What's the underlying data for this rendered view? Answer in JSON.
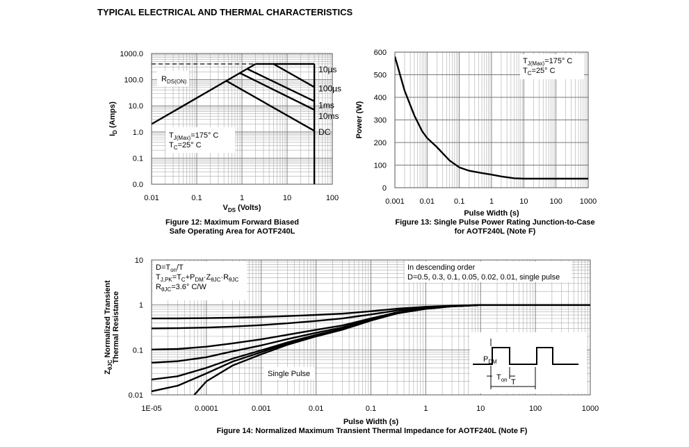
{
  "page_title": "TYPICAL ELECTRICAL AND THERMAL CHARACTERISTICS",
  "chart_data": [
    {
      "type": "line",
      "xlog": true,
      "ylog": true,
      "grid": true,
      "xlabel": [
        {
          "text": "V"
        },
        {
          "sub": "DS"
        },
        {
          "text": " (Volts)"
        }
      ],
      "ylabel": [
        {
          "text": "I"
        },
        {
          "sub": "D"
        },
        {
          "text": " (Amps)"
        }
      ],
      "caption": [
        "Figure 12: Maximum Forward Biased",
        "Safe Operating Area for AOTF240L"
      ],
      "xlim": [
        0.01,
        100
      ],
      "xticks": [
        0.01,
        0.1,
        1,
        10,
        100
      ],
      "ylim": [
        0.01,
        1000
      ],
      "yticks": [
        {
          "value": 0.01,
          "label": "0.0"
        },
        {
          "value": 0.1,
          "label": "0.1"
        },
        {
          "value": 1,
          "label": "1.0"
        },
        {
          "value": 10,
          "label": "10.0"
        },
        {
          "value": 100,
          "label": "100.0"
        },
        {
          "value": 1000,
          "label": "1000.0"
        }
      ],
      "series": [
        {
          "x": [
            0.01,
            2
          ],
          "values": [
            2,
            400
          ]
        },
        {
          "x": [
            0.01,
            2
          ],
          "values": [
            400,
            400
          ],
          "dash": true
        },
        {
          "name": "10µs",
          "x": [
            2,
            40
          ],
          "values": [
            400,
            400
          ]
        },
        {
          "name": "100µs",
          "x": [
            5,
            40
          ],
          "values": [
            400,
            52
          ]
        },
        {
          "name": "1ms",
          "x": [
            1.3,
            40
          ],
          "values": [
            260,
            15
          ]
        },
        {
          "name": "10ms",
          "x": [
            0.9,
            40
          ],
          "values": [
            180,
            7
          ]
        },
        {
          "name": "DC",
          "x": [
            0.45,
            40
          ],
          "values": [
            90,
            1.1
          ]
        },
        {
          "x": [
            40,
            40
          ],
          "values": [
            400,
            0.01
          ]
        }
      ],
      "annotations": [
        {
          "lines": [
            [
              {
                "text": "R"
              },
              {
                "sub": "DS(ON)"
              }
            ]
          ]
        },
        {
          "lines": [
            [
              {
                "text": "T"
              },
              {
                "sub": "J(Max)"
              },
              {
                "text": "=175° C"
              }
            ],
            [
              {
                "text": "T"
              },
              {
                "sub": "C"
              },
              {
                "text": "=25° C"
              }
            ]
          ]
        }
      ]
    },
    {
      "type": "line",
      "xlog": true,
      "ylog": false,
      "grid": true,
      "xlabel": [
        {
          "text": "Pulse Width (s)"
        }
      ],
      "ylabel": [
        {
          "text": "Power (W)"
        }
      ],
      "caption": [
        "Figure 13: Single Pulse Power Rating Junction-to-Case",
        "for AOTF240L (Note F)"
      ],
      "xlim": [
        0.001,
        1000
      ],
      "xticks": [
        0.001,
        0.01,
        0.1,
        1,
        10,
        100,
        1000
      ],
      "ylim": [
        0,
        600
      ],
      "yticks": [
        0,
        100,
        200,
        300,
        400,
        500,
        600
      ],
      "series": [
        {
          "x": [
            0.001,
            0.002,
            0.004,
            0.007,
            0.01,
            0.02,
            0.05,
            0.1,
            0.2,
            0.5,
            1,
            2,
            5,
            10,
            100,
            1000
          ],
          "values": [
            580,
            430,
            320,
            250,
            220,
            180,
            120,
            90,
            75,
            65,
            58,
            50,
            42,
            40,
            40,
            40
          ]
        }
      ],
      "annotations": [
        {
          "lines": [
            [
              {
                "text": "T"
              },
              {
                "sub": "J(Max)"
              },
              {
                "text": "=175° C"
              }
            ],
            [
              {
                "text": "T"
              },
              {
                "sub": "C"
              },
              {
                "text": "=25° C"
              }
            ]
          ]
        }
      ]
    },
    {
      "type": "line",
      "xlog": true,
      "ylog": true,
      "grid": true,
      "xlabel": [
        {
          "text": "Pulse Width (s)"
        }
      ],
      "ylabel": [
        {
          "text": "Z"
        },
        {
          "sub": "θJC"
        },
        {
          "text": " Normalized Transient"
        }
      ],
      "ylabel2": [
        {
          "text": "Thermal Resistance"
        }
      ],
      "caption": [
        "Figure 14: Normalized Maximum Transient Thermal Impedance for AOTF240L (Note F)"
      ],
      "xlim": [
        1e-05,
        1000
      ],
      "xticks": [
        {
          "value": 1e-05,
          "label": "1E-05"
        },
        0.0001,
        0.001,
        0.01,
        0.1,
        1,
        10,
        100,
        1000
      ],
      "ylim": [
        0.01,
        10
      ],
      "yticks": [
        0.01,
        0.1,
        1,
        10
      ],
      "series": [
        {
          "x": [
            1e-05,
            3e-05,
            0.0001,
            0.0003,
            0.001,
            0.003,
            0.01,
            0.03,
            0.1,
            0.3,
            1,
            3,
            10,
            100,
            1000
          ],
          "values": [
            0.501,
            0.503,
            0.51,
            0.52,
            0.54,
            0.565,
            0.6,
            0.64,
            0.725,
            0.825,
            0.91,
            0.965,
            1,
            1,
            1
          ]
        },
        {
          "x": [
            1e-05,
            3e-05,
            0.0001,
            0.0003,
            0.001,
            0.003,
            0.01,
            0.03,
            0.1,
            0.3,
            1,
            3,
            10,
            100,
            1000
          ],
          "values": [
            0.301,
            0.304,
            0.314,
            0.33,
            0.356,
            0.39,
            0.44,
            0.5,
            0.615,
            0.755,
            0.87,
            0.95,
            1,
            1,
            1
          ]
        },
        {
          "x": [
            1e-05,
            3e-05,
            0.0001,
            0.0003,
            0.001,
            0.003,
            0.01,
            0.03,
            0.1,
            0.3,
            1,
            3,
            10,
            100,
            1000
          ],
          "values": [
            0.102,
            0.105,
            0.118,
            0.14,
            0.172,
            0.217,
            0.28,
            0.35,
            0.5,
            0.685,
            0.84,
            0.94,
            1,
            1,
            1
          ]
        },
        {
          "x": [
            1e-05,
            3e-05,
            0.0001,
            0.0003,
            0.001,
            0.003,
            0.01,
            0.03,
            0.1,
            0.3,
            1,
            3,
            10,
            100,
            1000
          ],
          "values": [
            0.052,
            0.056,
            0.069,
            0.093,
            0.126,
            0.174,
            0.24,
            0.316,
            0.478,
            0.668,
            0.83,
            0.93,
            1,
            1,
            1
          ]
        },
        {
          "x": [
            1e-05,
            3e-05,
            0.0001,
            0.0003,
            0.001,
            0.003,
            0.01,
            0.03,
            0.1,
            0.3,
            1,
            3,
            10,
            100,
            1000
          ],
          "values": [
            0.022,
            0.026,
            0.04,
            0.064,
            0.098,
            0.147,
            0.216,
            0.294,
            0.461,
            0.657,
            0.82,
            0.93,
            1,
            1,
            1
          ]
        },
        {
          "x": [
            1e-05,
            3e-05,
            0.0001,
            0.0003,
            0.001,
            0.003,
            0.01,
            0.03,
            0.1,
            0.3,
            1,
            3,
            10,
            100,
            1000
          ],
          "values": [
            0.012,
            0.016,
            0.03,
            0.055,
            0.089,
            0.139,
            0.208,
            0.287,
            0.455,
            0.65,
            0.82,
            0.93,
            1,
            1,
            1
          ]
        },
        {
          "x": [
            6e-05,
            0.0001,
            0.0003,
            0.001,
            0.003,
            0.01,
            0.03,
            0.1,
            0.3,
            1,
            3,
            10,
            100,
            1000
          ],
          "values": [
            0.01,
            0.02,
            0.045,
            0.08,
            0.13,
            0.2,
            0.28,
            0.45,
            0.65,
            0.82,
            0.93,
            1,
            1,
            1
          ]
        }
      ],
      "annotations": [
        {
          "lines": [
            [
              {
                "text": "D=T"
              },
              {
                "sub": "on"
              },
              {
                "text": "/T"
              }
            ],
            [
              {
                "text": "T"
              },
              {
                "sub": "J,PK"
              },
              {
                "text": "=T"
              },
              {
                "sub": "C"
              },
              {
                "text": "+P"
              },
              {
                "sub": "DM"
              },
              {
                "text": "·Z"
              },
              {
                "sub": "θJC"
              },
              {
                "text": "·R"
              },
              {
                "sub": "θJC"
              }
            ],
            [
              {
                "text": "R"
              },
              {
                "sub": "θJC"
              },
              {
                "text": "=3.6° C/W"
              }
            ]
          ]
        },
        {
          "lines": [
            [
              {
                "text": "In descending order"
              }
            ],
            [
              {
                "text": "D=0.5, 0.3, 0.1, 0.05, 0.02, 0.01, single pulse"
              }
            ]
          ]
        },
        {
          "lines": [
            [
              {
                "text": "Single Pulse"
              }
            ]
          ]
        }
      ],
      "inset": {
        "p": [
          {
            "text": "P"
          },
          {
            "sub": "DM"
          }
        ],
        "ton": [
          {
            "text": "T"
          },
          {
            "sub": "on"
          }
        ],
        "t": [
          {
            "text": "T"
          }
        ]
      }
    }
  ]
}
